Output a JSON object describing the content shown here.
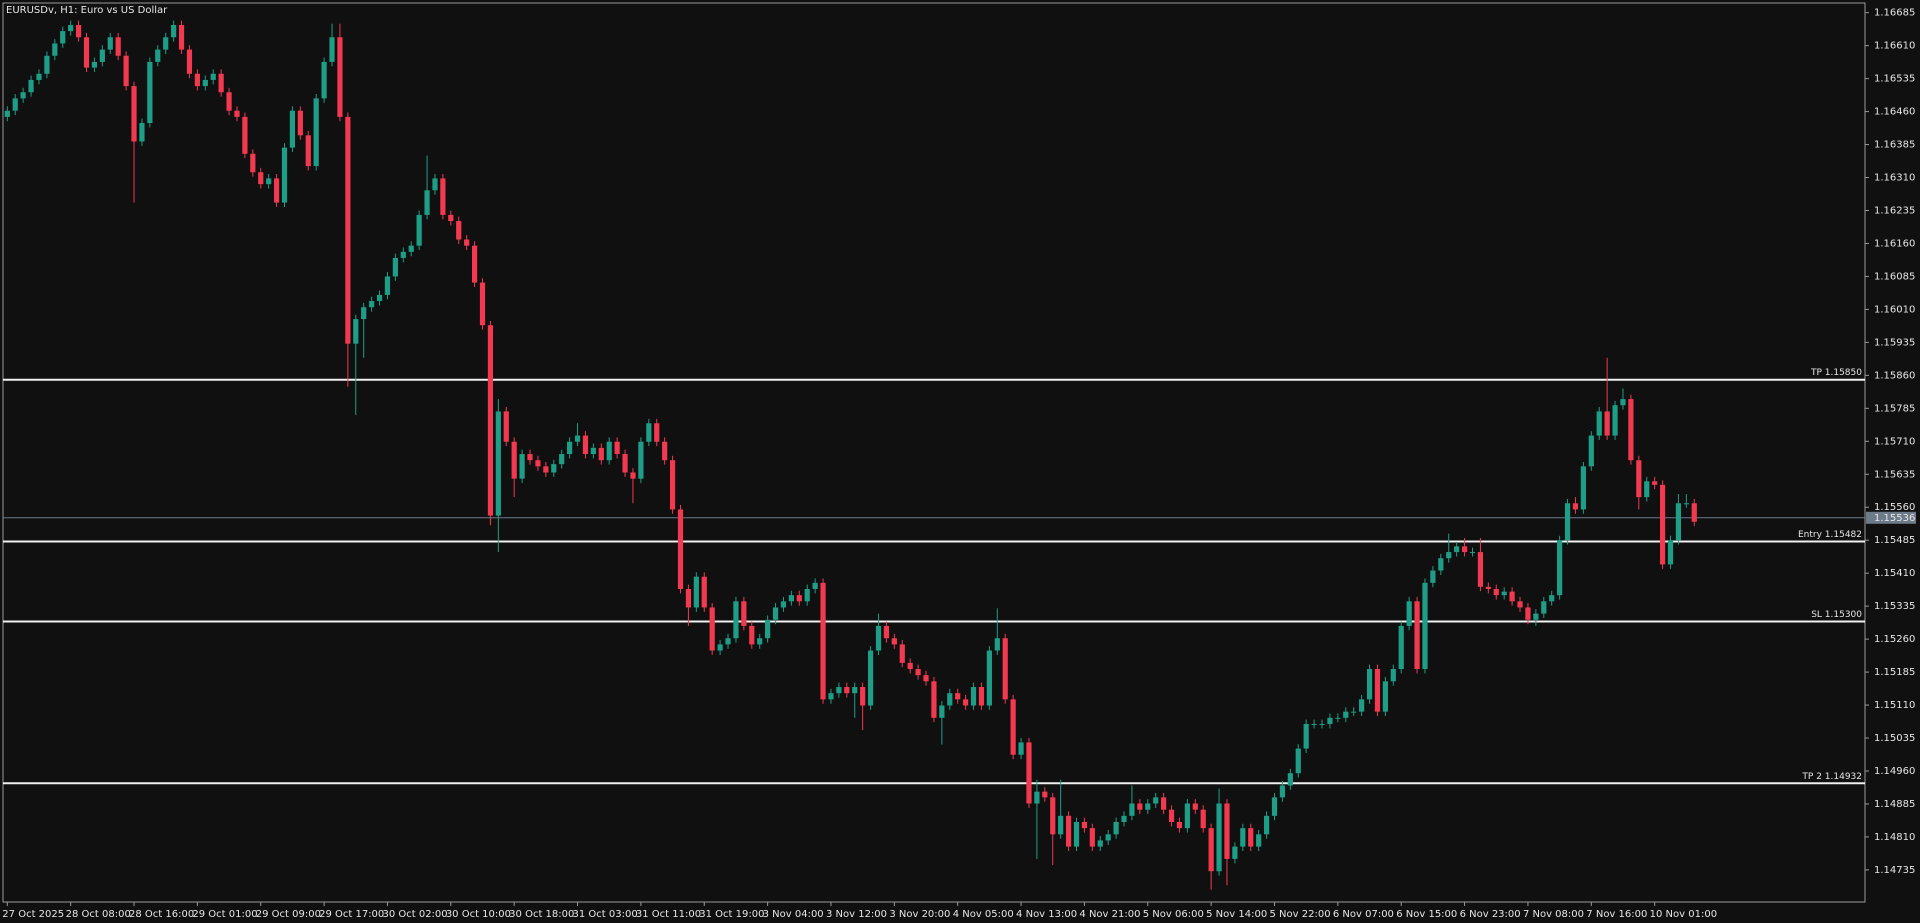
{
  "chart_data": {
    "type": "candlestick",
    "title": "EURUSDv, H1:  Euro vs US Dollar",
    "up_color": "#1e9e87",
    "down_color": "#f2394f",
    "ylim": [
      1.14662,
      1.16707
    ],
    "yticks": [
      1.16685,
      {
        "value": 1.1661,
        "label": "1.16610"
      },
      1.16535,
      {
        "value": 1.1646,
        "label": "1.16460"
      },
      1.16385,
      {
        "value": 1.1631,
        "label": "1.16310"
      },
      1.16235,
      {
        "value": 1.1616,
        "label": "1.16160"
      },
      1.16085,
      {
        "value": 1.1601,
        "label": "1.16010"
      },
      1.15935,
      {
        "value": 1.1586,
        "label": "1.15860"
      },
      1.15785,
      {
        "value": 1.1571,
        "label": "1.15710"
      },
      1.15635,
      {
        "value": 1.1556,
        "label": "1.15560"
      },
      1.15485,
      {
        "value": 1.1541,
        "label": "1.15410"
      },
      1.15335,
      {
        "value": 1.1526,
        "label": "1.15260"
      },
      1.15185,
      {
        "value": 1.1511,
        "label": "1.15110"
      },
      1.15035,
      {
        "value": 1.1496,
        "label": "1.14960"
      },
      1.14885,
      {
        "value": 1.1481,
        "label": "1.14810"
      },
      1.14735
    ],
    "levels": [
      {
        "value": 1.1585,
        "label": "TP 1.15850"
      },
      {
        "value": 1.15482,
        "label": "Entry 1.15482"
      },
      {
        "value": 1.153,
        "label": "SL 1.15300"
      },
      {
        "value": 1.14932,
        "label": "TP 2 1.14932"
      }
    ],
    "last_price": 1.15536,
    "categories": [
      "27 Oct 2025",
      null,
      null,
      null,
      null,
      null,
      null,
      null,
      "28 Oct 08:00",
      null,
      null,
      null,
      null,
      null,
      null,
      null,
      "28 Oct 16:00",
      null,
      null,
      null,
      null,
      null,
      null,
      null,
      "29 Oct 01:00",
      null,
      null,
      null,
      null,
      null,
      null,
      null,
      "29 Oct 09:00",
      null,
      null,
      null,
      null,
      null,
      null,
      null,
      "29 Oct 17:00",
      null,
      null,
      null,
      null,
      null,
      null,
      null,
      "30 Oct 02:00",
      null,
      null,
      null,
      null,
      null,
      null,
      null,
      "30 Oct 10:00",
      null,
      null,
      null,
      null,
      null,
      null,
      null,
      "30 Oct 18:00",
      null,
      null,
      null,
      null,
      null,
      null,
      null,
      "31 Oct 03:00",
      null,
      null,
      null,
      null,
      null,
      null,
      null,
      "31 Oct 11:00",
      null,
      null,
      null,
      null,
      null,
      null,
      null,
      "31 Oct 19:00",
      null,
      null,
      null,
      null,
      null,
      null,
      null,
      "3 Nov 04:00",
      null,
      null,
      null,
      null,
      null,
      null,
      null,
      "3 Nov 12:00",
      null,
      null,
      null,
      null,
      null,
      null,
      null,
      "3 Nov 20:00",
      null,
      null,
      null,
      null,
      null,
      null,
      null,
      "4 Nov 05:00",
      null,
      null,
      null,
      null,
      null,
      null,
      null,
      "4 Nov 13:00",
      null,
      null,
      null,
      null,
      null,
      null,
      null,
      "4 Nov 21:00",
      null,
      null,
      null,
      null,
      null,
      null,
      null,
      "5 Nov 06:00",
      null,
      null,
      null,
      null,
      null,
      null,
      null,
      "5 Nov 14:00",
      null,
      null,
      null,
      null,
      null,
      null,
      null,
      "5 Nov 22:00",
      null,
      null,
      null,
      null,
      null,
      null,
      null,
      "6 Nov 07:00",
      null,
      null,
      null,
      null,
      null,
      null,
      null,
      "6 Nov 15:00",
      null,
      null,
      null,
      null,
      null,
      null,
      null,
      "6 Nov 23:00",
      null,
      null,
      null,
      null,
      null,
      null,
      null,
      "7 Nov 08:00",
      null,
      null,
      null,
      null,
      null,
      null,
      null,
      "7 Nov 16:00",
      null,
      null,
      null,
      null,
      null,
      null,
      null,
      "10 Nov 01:00",
      null,
      null,
      null,
      null,
      null
    ],
    "open": [
      1.16448,
      1.16462,
      1.1649,
      1.16504,
      1.16532,
      1.16546,
      1.16587,
      1.16615,
      1.16643,
      1.16657,
      1.16629,
      1.1656,
      1.16573,
      1.16601,
      1.16629,
      1.16587,
      1.16518,
      1.16392,
      1.16434,
      1.16573,
      1.16601,
      1.16629,
      1.16657,
      1.16601,
      1.16546,
      1.16518,
      1.16532,
      1.16546,
      1.16504,
      1.16462,
      1.16448,
      1.16364,
      1.16322,
      1.16295,
      1.16308,
      1.16253,
      1.16378,
      1.16462,
      1.16406,
      1.16336,
      1.1649,
      1.16573,
      1.16629,
      1.16448,
      1.15932,
      1.15988,
      1.16015,
      1.16029,
      1.16043,
      1.16085,
      1.16127,
      1.16141,
      1.16155,
      1.16225,
      1.16281,
      1.16308,
      1.16225,
      1.16211,
      1.16169,
      1.16155,
      1.16071,
      1.15974,
      1.15541,
      1.15778,
      1.15709,
      1.15625,
      1.15681,
      1.15667,
      1.15653,
      1.15639,
      1.15658,
      1.15681,
      1.15709,
      1.15723,
      1.15681,
      1.15695,
      1.15667,
      1.15709,
      1.15681,
      1.15639,
      1.15625,
      1.15709,
      1.15751,
      1.15709,
      1.15667,
      1.15555,
      1.15374,
      1.15332,
      1.15402,
      1.15332,
      1.15234,
      1.15248,
      1.15262,
      1.15346,
      1.1529,
      1.15248,
      1.15262,
      1.15304,
      1.15332,
      1.15346,
      1.1536,
      1.15346,
      1.15374,
      1.15388,
      1.15123,
      1.15137,
      1.15151,
      1.15137,
      1.15151,
      1.15109,
      1.15234,
      1.1529,
      1.15262,
      1.15248,
      1.15206,
      1.15192,
      1.15178,
      1.15164,
      1.15081,
      1.15109,
      1.15137,
      1.15123,
      1.15109,
      1.15151,
      1.15109,
      1.15234,
      1.15262,
      1.15123,
      1.14997,
      1.15025,
      1.14886,
      1.14913,
      1.149,
      1.14816,
      1.14858,
      1.14788,
      1.14844,
      1.1483,
      1.14788,
      1.14802,
      1.14816,
      1.14844,
      1.14858,
      1.14886,
      1.14872,
      1.14886,
      1.149,
      1.14872,
      1.14844,
      1.1483,
      1.14886,
      1.14872,
      1.1483,
      1.14732,
      1.14886,
      1.1476,
      1.14788,
      1.1483,
      1.14788,
      1.14816,
      1.14858,
      1.149,
      1.14927,
      1.14955,
      1.15011,
      1.15067,
      1.15067,
      1.15067,
      1.15081,
      1.15081,
      1.15095,
      1.15095,
      1.15123,
      1.15192,
      1.15095,
      1.15164,
      1.15192,
      1.1529,
      1.15346,
      1.15192,
      1.15388,
      1.15416,
      1.15444,
      1.15458,
      1.15471,
      1.15458,
      1.15458,
      1.15379,
      1.15374,
      1.1536,
      1.15368,
      1.15346,
      1.15332,
      1.15304,
      1.15318,
      1.15346,
      1.1536,
      1.15485,
      1.15569,
      1.15555,
      1.15653,
      1.15723,
      1.15778,
      1.15723,
      1.15792,
      1.15806,
      1.15667,
      1.15583,
      1.15619,
      1.15611,
      1.1543,
      1.15485,
      1.15569,
      1.15569
    ],
    "high": [
      1.16472,
      1.165,
      1.16514,
      1.16542,
      1.16556,
      1.16597,
      1.16625,
      1.16653,
      1.16667,
      1.16667,
      1.16639,
      1.16583,
      1.16611,
      1.16639,
      1.16639,
      1.16597,
      1.16528,
      1.16444,
      1.16583,
      1.16611,
      1.16639,
      1.16667,
      1.16667,
      1.16611,
      1.16556,
      1.16542,
      1.16556,
      1.16556,
      1.16514,
      1.16472,
      1.16458,
      1.16374,
      1.16332,
      1.16318,
      1.16318,
      1.16388,
      1.16472,
      1.16472,
      1.16416,
      1.165,
      1.16583,
      1.1666,
      1.1666,
      1.16458,
      1.15998,
      1.16025,
      1.16039,
      1.16053,
      1.16095,
      1.16137,
      1.16151,
      1.16165,
      1.16235,
      1.1636,
      1.16318,
      1.16318,
      1.16235,
      1.16221,
      1.16179,
      1.16165,
      1.16081,
      1.15984,
      1.15806,
      1.15788,
      1.15719,
      1.15691,
      1.15691,
      1.15677,
      1.15663,
      1.15668,
      1.15691,
      1.15719,
      1.15751,
      1.15733,
      1.15705,
      1.15705,
      1.15719,
      1.15719,
      1.15691,
      1.15649,
      1.15719,
      1.15761,
      1.15761,
      1.15719,
      1.15677,
      1.15565,
      1.15384,
      1.15412,
      1.15412,
      1.15342,
      1.15258,
      1.15272,
      1.15356,
      1.15356,
      1.153,
      1.15272,
      1.15314,
      1.15342,
      1.15356,
      1.1537,
      1.1537,
      1.15384,
      1.15398,
      1.15398,
      1.15147,
      1.15161,
      1.15161,
      1.15161,
      1.15161,
      1.15244,
      1.15318,
      1.153,
      1.15272,
      1.15258,
      1.15216,
      1.15202,
      1.15188,
      1.15174,
      1.15119,
      1.15147,
      1.15147,
      1.15133,
      1.15161,
      1.15161,
      1.15244,
      1.1533,
      1.15272,
      1.15133,
      1.15035,
      1.15035,
      1.1494,
      1.14923,
      1.1491,
      1.1494,
      1.14868,
      1.14854,
      1.14854,
      1.1484,
      1.14812,
      1.14826,
      1.14854,
      1.14868,
      1.14927,
      1.14896,
      1.14896,
      1.1491,
      1.1491,
      1.14882,
      1.14854,
      1.14896,
      1.14896,
      1.14882,
      1.1484,
      1.1492,
      1.14896,
      1.14798,
      1.1484,
      1.1484,
      1.14826,
      1.14868,
      1.1491,
      1.14937,
      1.14965,
      1.15021,
      1.15077,
      1.15077,
      1.15077,
      1.15091,
      1.15091,
      1.15105,
      1.15105,
      1.15133,
      1.15202,
      1.15202,
      1.15174,
      1.15202,
      1.153,
      1.15356,
      1.15356,
      1.15398,
      1.15426,
      1.15454,
      1.155,
      1.15481,
      1.1549,
      1.15468,
      1.1549,
      1.15389,
      1.15384,
      1.15378,
      1.15378,
      1.15356,
      1.15342,
      1.15328,
      1.15356,
      1.1537,
      1.15495,
      1.15579,
      1.15583,
      1.15663,
      1.15733,
      1.15788,
      1.159,
      1.15802,
      1.1583,
      1.15816,
      1.15677,
      1.15629,
      1.15629,
      1.15621,
      1.15495,
      1.1559,
      1.1559,
      1.15579
    ],
    "low": [
      1.16438,
      1.16452,
      1.1648,
      1.16494,
      1.16522,
      1.16536,
      1.16577,
      1.16605,
      1.16633,
      1.16619,
      1.1655,
      1.1655,
      1.16563,
      1.16591,
      1.16577,
      1.16508,
      1.16253,
      1.16382,
      1.16424,
      1.16563,
      1.16591,
      1.16619,
      1.16591,
      1.16536,
      1.16508,
      1.16508,
      1.16522,
      1.16494,
      1.16452,
      1.16438,
      1.16354,
      1.16312,
      1.16285,
      1.16285,
      1.16243,
      1.16243,
      1.16368,
      1.16396,
      1.16326,
      1.16326,
      1.1648,
      1.16563,
      1.16438,
      1.15834,
      1.1577,
      1.159,
      1.16005,
      1.16019,
      1.16033,
      1.16075,
      1.16117,
      1.16131,
      1.16145,
      1.16215,
      1.16271,
      1.16215,
      1.16201,
      1.16159,
      1.16145,
      1.16061,
      1.15964,
      1.15519,
      1.15458,
      1.15699,
      1.15583,
      1.15615,
      1.15657,
      1.15643,
      1.15629,
      1.15629,
      1.15648,
      1.15671,
      1.15699,
      1.15671,
      1.15671,
      1.15657,
      1.15657,
      1.15671,
      1.15629,
      1.15569,
      1.15615,
      1.15699,
      1.15699,
      1.15657,
      1.15545,
      1.15364,
      1.1529,
      1.15322,
      1.15322,
      1.15224,
      1.15224,
      1.15238,
      1.15252,
      1.1528,
      1.15238,
      1.15238,
      1.15252,
      1.15294,
      1.15322,
      1.15336,
      1.15336,
      1.15336,
      1.15364,
      1.15113,
      1.15113,
      1.15127,
      1.15127,
      1.15081,
      1.15053,
      1.15099,
      1.15224,
      1.15252,
      1.15238,
      1.15196,
      1.15182,
      1.15168,
      1.15154,
      1.15071,
      1.1502,
      1.15099,
      1.15113,
      1.15099,
      1.15099,
      1.15099,
      1.15099,
      1.15224,
      1.15113,
      1.14987,
      1.14987,
      1.14876,
      1.1476,
      1.1489,
      1.14746,
      1.14806,
      1.14778,
      1.14778,
      1.1482,
      1.14778,
      1.14778,
      1.14792,
      1.14806,
      1.14834,
      1.14848,
      1.14862,
      1.14862,
      1.14876,
      1.14862,
      1.14834,
      1.1482,
      1.1482,
      1.14862,
      1.1482,
      1.1469,
      1.14722,
      1.147,
      1.1475,
      1.14778,
      1.14778,
      1.14778,
      1.14806,
      1.14848,
      1.1489,
      1.14917,
      1.14945,
      1.15001,
      1.15057,
      1.15057,
      1.15057,
      1.15071,
      1.15071,
      1.15085,
      1.15085,
      1.15113,
      1.15085,
      1.15085,
      1.15154,
      1.15182,
      1.1528,
      1.15182,
      1.15182,
      1.15378,
      1.15406,
      1.15434,
      1.15448,
      1.15448,
      1.15448,
      1.15369,
      1.15364,
      1.1535,
      1.1535,
      1.15336,
      1.15322,
      1.15294,
      1.1529,
      1.15308,
      1.15336,
      1.1535,
      1.15475,
      1.15545,
      1.15545,
      1.15643,
      1.15713,
      1.15713,
      1.15713,
      1.15782,
      1.15657,
      1.15555,
      1.15573,
      1.15601,
      1.1542,
      1.1542,
      1.15475,
      1.15559,
      1.15517
    ],
    "close": [
      1.16462,
      1.1649,
      1.16504,
      1.16532,
      1.16546,
      1.16587,
      1.16615,
      1.16643,
      1.16657,
      1.16629,
      1.1656,
      1.16573,
      1.16601,
      1.16629,
      1.16587,
      1.16518,
      1.16392,
      1.16434,
      1.16573,
      1.16601,
      1.16629,
      1.16657,
      1.16601,
      1.16546,
      1.16518,
      1.16532,
      1.16546,
      1.16504,
      1.16462,
      1.16448,
      1.16364,
      1.16322,
      1.16295,
      1.16308,
      1.16253,
      1.16378,
      1.16462,
      1.16406,
      1.16336,
      1.1649,
      1.16573,
      1.16629,
      1.16448,
      1.15932,
      1.15988,
      1.16015,
      1.16029,
      1.16043,
      1.16085,
      1.16127,
      1.16141,
      1.16155,
      1.16225,
      1.16281,
      1.16308,
      1.16225,
      1.16211,
      1.16169,
      1.16155,
      1.16071,
      1.15974,
      1.15541,
      1.15778,
      1.15709,
      1.15625,
      1.15681,
      1.15667,
      1.15653,
      1.15639,
      1.15658,
      1.15681,
      1.15709,
      1.15723,
      1.15681,
      1.15695,
      1.15667,
      1.15709,
      1.15681,
      1.15639,
      1.15625,
      1.15709,
      1.15751,
      1.15709,
      1.15667,
      1.15555,
      1.15374,
      1.15332,
      1.15402,
      1.15332,
      1.15234,
      1.15248,
      1.15262,
      1.15346,
      1.1529,
      1.15248,
      1.15262,
      1.15304,
      1.15332,
      1.15346,
      1.1536,
      1.15346,
      1.15374,
      1.15388,
      1.15123,
      1.15137,
      1.15151,
      1.15137,
      1.15151,
      1.15109,
      1.15234,
      1.1529,
      1.15262,
      1.15248,
      1.15206,
      1.15192,
      1.15178,
      1.15164,
      1.15081,
      1.15109,
      1.15137,
      1.15123,
      1.15109,
      1.15151,
      1.15109,
      1.15234,
      1.15262,
      1.15123,
      1.14997,
      1.15025,
      1.14886,
      1.14913,
      1.149,
      1.14816,
      1.14858,
      1.14788,
      1.14844,
      1.1483,
      1.14788,
      1.14802,
      1.14816,
      1.14844,
      1.14858,
      1.14886,
      1.14872,
      1.14886,
      1.149,
      1.14872,
      1.14844,
      1.1483,
      1.14886,
      1.14872,
      1.1483,
      1.14732,
      1.14886,
      1.1476,
      1.14788,
      1.1483,
      1.14788,
      1.14816,
      1.14858,
      1.149,
      1.14927,
      1.14955,
      1.15011,
      1.15067,
      1.15067,
      1.15067,
      1.15081,
      1.15081,
      1.15095,
      1.15095,
      1.15123,
      1.15192,
      1.15095,
      1.15164,
      1.15192,
      1.1529,
      1.15346,
      1.15192,
      1.15388,
      1.15416,
      1.15444,
      1.15458,
      1.15471,
      1.15458,
      1.15458,
      1.15379,
      1.15374,
      1.1536,
      1.15368,
      1.15346,
      1.15332,
      1.15304,
      1.15318,
      1.15346,
      1.1536,
      1.15485,
      1.15569,
      1.15555,
      1.15653,
      1.15723,
      1.15778,
      1.15723,
      1.15792,
      1.15806,
      1.15667,
      1.15583,
      1.15619,
      1.15611,
      1.1543,
      1.15485,
      1.15569,
      1.15569,
      1.15527
    ]
  }
}
